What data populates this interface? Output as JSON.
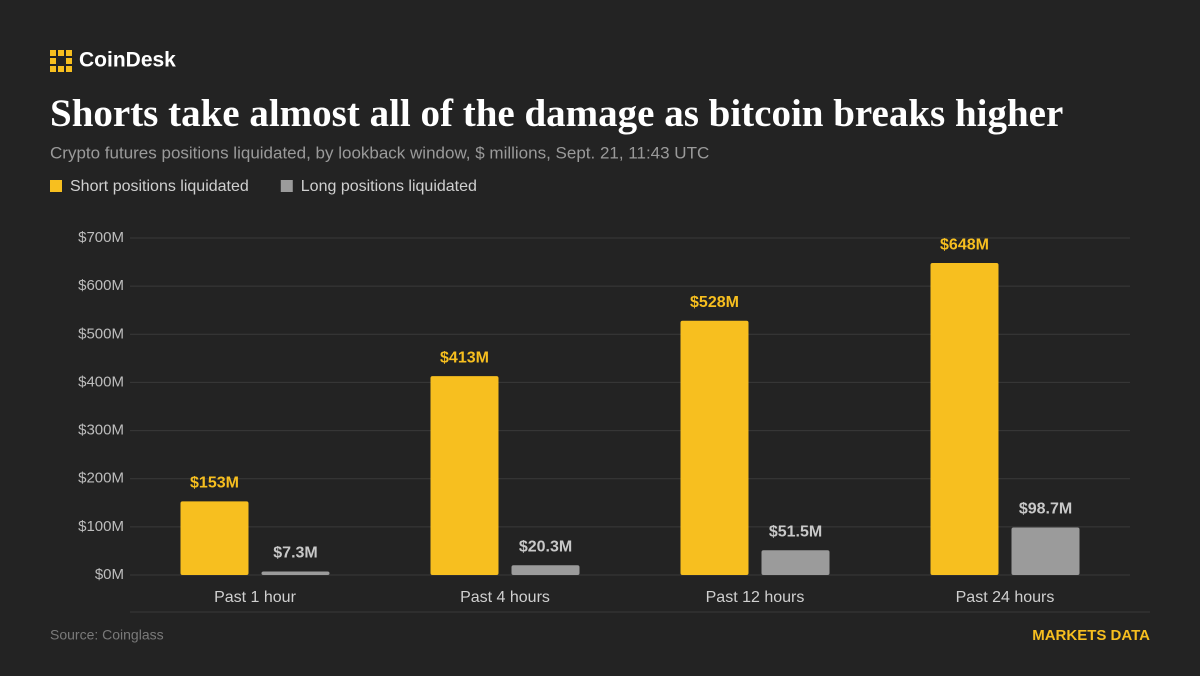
{
  "brand": "CoinDesk",
  "chart_data": {
    "type": "bar",
    "title": "Shorts take almost all of the damage as bitcoin breaks higher",
    "subtitle": "Crypto futures positions liquidated, by lookback window, $ millions, Sept. 21, 11:43 UTC",
    "categories": [
      "Past 1 hour",
      "Past 4 hours",
      "Past 12 hours",
      "Past 24 hours"
    ],
    "series": [
      {
        "name": "Short positions liquidated",
        "color": "#f7bf1f",
        "values": [
          153,
          413,
          528,
          648
        ],
        "value_labels": [
          "$153M",
          "$413M",
          "$528M",
          "$648M"
        ]
      },
      {
        "name": "Long positions liquidated",
        "color": "#9b9b9b",
        "values": [
          7.3,
          20.3,
          51.5,
          98.7
        ],
        "value_labels": [
          "$7.3M",
          "$20.3M",
          "$51.5M",
          "$98.7M"
        ]
      }
    ],
    "ylim": [
      0,
      700
    ],
    "yticks": [
      {
        "value": 0,
        "label": "$0M"
      },
      {
        "value": 100,
        "label": "$100M"
      },
      {
        "value": 200,
        "label": "$200M"
      },
      {
        "value": 300,
        "label": "$300M"
      },
      {
        "value": 400,
        "label": "$400M"
      },
      {
        "value": 500,
        "label": "$500M"
      },
      {
        "value": 600,
        "label": "$600M"
      },
      {
        "value": 700,
        "label": "$700M"
      }
    ],
    "grid": true,
    "source": "Source: Coinglass",
    "credit": "MARKETS DATA"
  }
}
